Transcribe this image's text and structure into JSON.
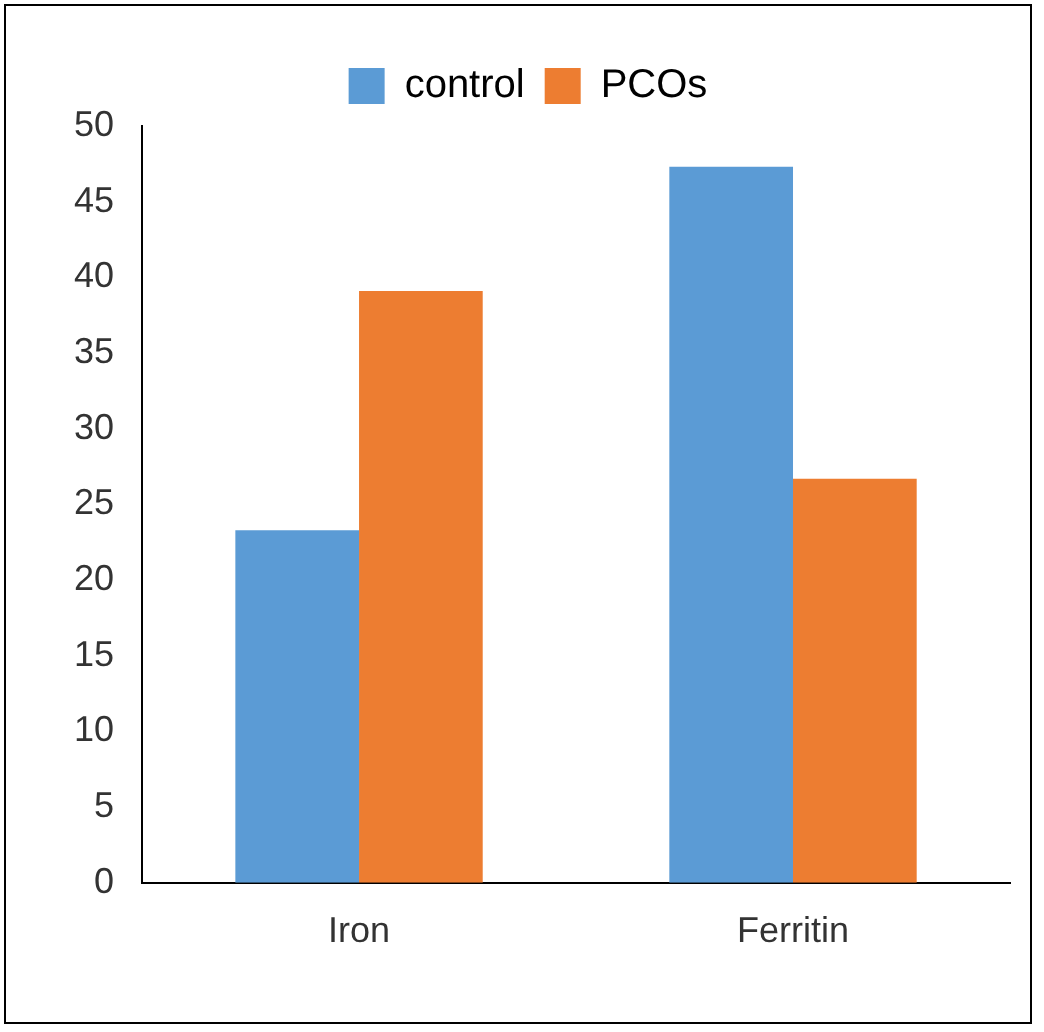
{
  "chart_data": {
    "type": "bar",
    "categories": [
      "Iron",
      "Ferritin"
    ],
    "series": [
      {
        "name": "control",
        "color": "#5b9bd5",
        "values": [
          23.3,
          47.3
        ]
      },
      {
        "name": "PCOs",
        "color": "#ed7d31",
        "values": [
          39.1,
          26.7
        ]
      }
    ],
    "ylim": [
      0,
      50
    ],
    "yticks": [
      0,
      5,
      10,
      15,
      20,
      25,
      30,
      35,
      40,
      45,
      50
    ],
    "grid": false,
    "legend": "top"
  }
}
